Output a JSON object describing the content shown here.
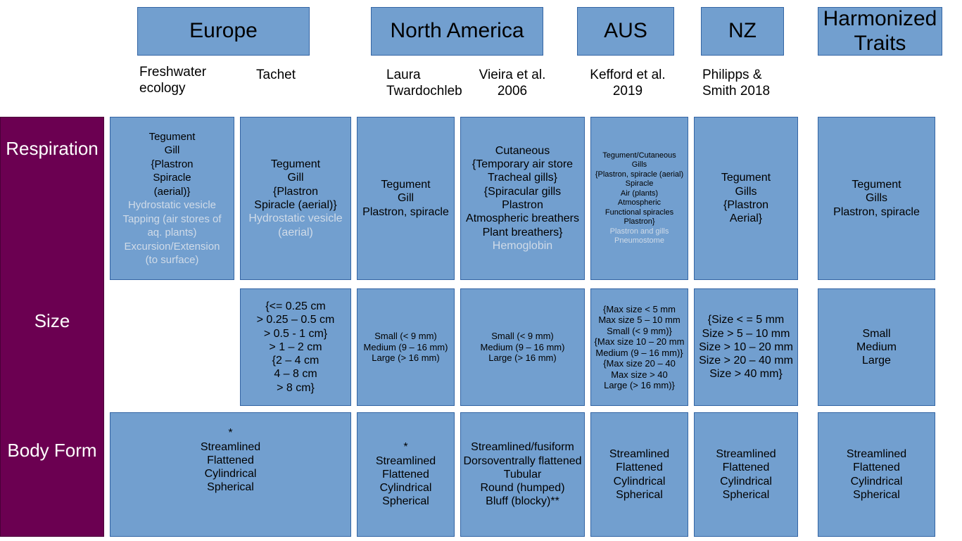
{
  "regions": {
    "europe": "Europe",
    "north_america": "North America",
    "aus": "AUS",
    "nz": "NZ",
    "harmonized": "Harmonized Traits"
  },
  "sources": {
    "freshwater_ecology": "Freshwater ecology",
    "tachet": "Tachet",
    "laura": "Laura Twardochleb",
    "vieira": "Vieira et al. 2006",
    "kefford": "Kefford et al. 2019",
    "philipps": "Philipps & Smith 2018"
  },
  "rows": {
    "respiration": "Respiration",
    "size": "Size",
    "body_form": "Body Form"
  },
  "colors": {
    "cell_fill": "#729fcf",
    "cell_border": "#3465a4",
    "sidebar": "#6b0051",
    "dim_text": "#d0dbe8"
  },
  "respiration": {
    "freshwater": {
      "lines": [
        "Tegument",
        "Gill",
        "{Plastron",
        "Spiracle",
        "(aerial)}"
      ],
      "dim_lines": [
        "Hydrostatic vesicle",
        "Tapping (air stores of",
        "aq. plants)",
        "Excursion/Extension",
        "(to surface)"
      ]
    },
    "tachet": {
      "lines": [
        "Tegument",
        "Gill",
        "{Plastron",
        "Spiracle (aerial)}"
      ],
      "dim_lines": [
        "Hydrostatic vesicle",
        "(aerial)"
      ]
    },
    "laura": {
      "lines": [
        "Tegument",
        "Gill",
        "Plastron, spiracle"
      ]
    },
    "vieira": {
      "lines": [
        "Cutaneous",
        "{Temporary air store",
        "Tracheal gills}",
        "{Spiracular gills",
        "Plastron",
        "Atmospheric breathers",
        "Plant breathers}"
      ],
      "dim_lines": [
        "Hemoglobin"
      ]
    },
    "kefford": {
      "lines": [
        "Tegument/Cutaneous",
        "Gills",
        "{Plastron, spiracle (aerial)",
        "Spiracle",
        "Air (plants)",
        "Atmospheric",
        "Functional spiracles",
        "Plastron}"
      ],
      "dim_lines": [
        "Plastron and gills",
        "Pneumostome"
      ]
    },
    "philipps": {
      "lines": [
        "Tegument",
        "Gills",
        "{Plastron",
        "Aerial}"
      ]
    },
    "harmonized": {
      "lines": [
        "Tegument",
        "Gills",
        "Plastron, spiracle"
      ]
    }
  },
  "size": {
    "tachet": {
      "lines": [
        "{<= 0.25 cm",
        "> 0.25 – 0.5 cm",
        "> 0.5 - 1 cm}",
        "> 1 – 2 cm",
        "{2 – 4 cm",
        "4 – 8 cm",
        "> 8 cm}"
      ]
    },
    "laura": {
      "lines": [
        "Small (< 9 mm)",
        "Medium (9 – 16 mm)",
        "Large (> 16 mm)"
      ]
    },
    "vieira": {
      "lines": [
        "Small (< 9 mm)",
        "Medium (9 – 16 mm)",
        "Large (> 16 mm)"
      ]
    },
    "kefford": {
      "lines": [
        "{Max size < 5 mm",
        "Max size 5 – 10 mm",
        "Small (< 9 mm)}",
        "{Max size 10 – 20 mm",
        "Medium (9 – 16 mm)}",
        "{Max size 20 – 40",
        "Max size > 40",
        "Large (> 16 mm)}"
      ]
    },
    "philipps": {
      "lines": [
        "{Size < = 5 mm",
        "Size >  5 – 10 mm",
        "Size > 10 – 20 mm",
        "Size > 20 – 40 mm",
        "Size > 40 mm}"
      ]
    },
    "harmonized": {
      "lines": [
        "Small",
        "Medium",
        "Large"
      ]
    }
  },
  "body_form": {
    "europe": {
      "lines": [
        "*",
        "Streamlined",
        "Flattened",
        "Cylindrical",
        "Spherical"
      ]
    },
    "laura": {
      "lines": [
        "*",
        "Streamlined",
        "Flattened",
        "Cylindrical",
        "Spherical"
      ]
    },
    "vieira": {
      "lines": [
        "Streamlined/fusiform",
        "Dorsoventrally flattened",
        "Tubular",
        "Round (humped)",
        "Bluff (blocky)**"
      ]
    },
    "kefford": {
      "lines": [
        "Streamlined",
        "Flattened",
        "Cylindrical",
        "Spherical"
      ]
    },
    "philipps": {
      "lines": [
        "Streamlined",
        "Flattened",
        "Cylindrical",
        "Spherical"
      ]
    },
    "harmonized": {
      "lines": [
        "Streamlined",
        "Flattened",
        "Cylindrical",
        "Spherical"
      ]
    }
  }
}
